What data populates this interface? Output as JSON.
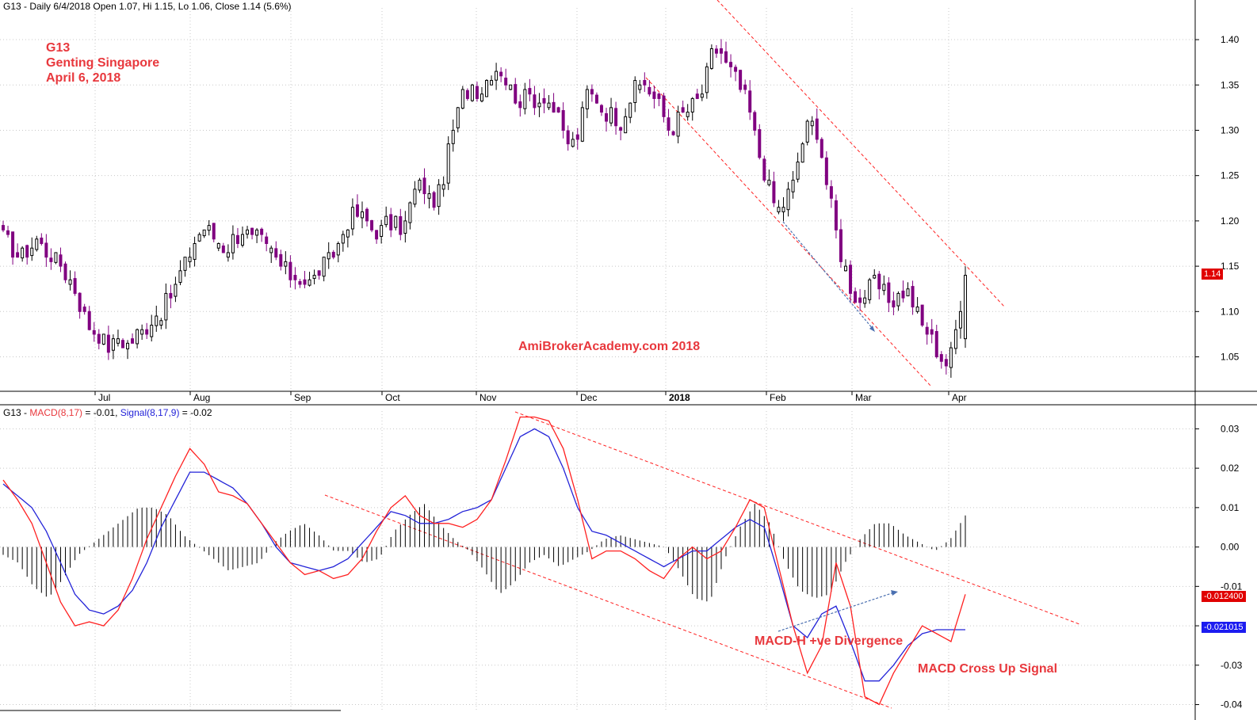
{
  "header": {
    "price_prefix": "G13 - Daily 6/4/2018 Open 1.07, Hi 1.15, Lo 1.06, Close 1.14 (5.6%)",
    "macd_prefix": "G13 - ",
    "macd_label": "MACD(8,17)",
    "macd_value": " = -0.01, ",
    "signal_label": "Signal(8,17,9)",
    "signal_value": " = -0.02"
  },
  "annotations": {
    "ticker": "G13",
    "company": "Genting Singapore",
    "date": "April 6, 2018",
    "watermark": "AmiBrokerAcademy.com  2018",
    "divergence": "MACD-H +ve Divergence",
    "cross_up": "MACD Cross Up Signal"
  },
  "last_values": {
    "price": "1.14",
    "macd": "-0.012400",
    "signal": "-0.021015"
  },
  "colors": {
    "bull_candle": "#ffffff",
    "bear_candle": "#800080",
    "macd_line": "#ff2020",
    "signal_line": "#2323d8",
    "histogram": "#000000",
    "annotation": "#e8383d",
    "channel": "#ff2020"
  },
  "chart_data": [
    {
      "type": "candlestick",
      "title": "G13 - Daily 6/4/2018 Open 1.07, Hi 1.15, Lo 1.06, Close 1.14 (5.6%)",
      "x_tick_labels": [
        "Jul",
        "Aug",
        "Sep",
        "Oct",
        "Nov",
        "Dec",
        "2018",
        "Feb",
        "Mar",
        "Apr"
      ],
      "y_tick_labels": [
        "1.05",
        "1.10",
        "1.15",
        "1.20",
        "1.25",
        "1.30",
        "1.35",
        "1.40"
      ],
      "ylim": [
        1.012,
        1.435
      ],
      "grid": true,
      "legend": "none",
      "anchor_closes": [
        1.18,
        1.17,
        1.16,
        1.17,
        1.18,
        1.17,
        1.16,
        1.15,
        1.14,
        1.12,
        1.09,
        1.08,
        1.07,
        1.06,
        1.07,
        1.06,
        1.07,
        1.08,
        1.09,
        1.1,
        1.11,
        1.13,
        1.15,
        1.17,
        1.19,
        1.19,
        1.18,
        1.17,
        1.18,
        1.19,
        1.18,
        1.18,
        1.17,
        1.16,
        1.15,
        1.14,
        1.14,
        1.13,
        1.14,
        1.15,
        1.16,
        1.18,
        1.2,
        1.21,
        1.2,
        1.19,
        1.19,
        1.2,
        1.19,
        1.2,
        1.23,
        1.24,
        1.22,
        1.23,
        1.27,
        1.31,
        1.34,
        1.35,
        1.34,
        1.36,
        1.37,
        1.36,
        1.34,
        1.33,
        1.34,
        1.33,
        1.34,
        1.32,
        1.3,
        1.28,
        1.3,
        1.34,
        1.34,
        1.32,
        1.32,
        1.31,
        1.33,
        1.35,
        1.35,
        1.34,
        1.32,
        1.3,
        1.31,
        1.32,
        1.33,
        1.34,
        1.38,
        1.39,
        1.37,
        1.36,
        1.34,
        1.31,
        1.27,
        1.24,
        1.21,
        1.22,
        1.24,
        1.28,
        1.31,
        1.3,
        1.25,
        1.2,
        1.16,
        1.13,
        1.11,
        1.12,
        1.13,
        1.12,
        1.11,
        1.12,
        1.12,
        1.1,
        1.08,
        1.07,
        1.05,
        1.04,
        1.09,
        1.14
      ]
    },
    {
      "type": "line",
      "title": "G13 - MACD(8,17) = -0.01, Signal(8,17,9) = -0.02",
      "y_tick_labels": [
        "-0.04",
        "-0.03",
        "-0.02",
        "-0.01",
        "0.00",
        "0.01",
        "0.02",
        "0.03"
      ],
      "ylim": [
        -0.0415,
        0.0345
      ],
      "grid": true,
      "series": [
        {
          "name": "MACD(8,17)",
          "values": [
            0.017,
            0.012,
            0.006,
            -0.004,
            -0.014,
            -0.02,
            -0.019,
            -0.02,
            -0.016,
            -0.008,
            0.002,
            0.01,
            0.018,
            0.025,
            0.021,
            0.014,
            0.013,
            0.011,
            0.006,
            0.001,
            -0.004,
            -0.007,
            -0.006,
            -0.008,
            -0.007,
            -0.003,
            0.004,
            0.01,
            0.013,
            0.008,
            0.006,
            0.006,
            0.005,
            0.007,
            0.012,
            0.022,
            0.033,
            0.033,
            0.032,
            0.025,
            0.012,
            -0.003,
            -0.001,
            -0.001,
            -0.003,
            -0.006,
            -0.008,
            -0.003,
            0.0,
            -0.003,
            -0.001,
            0.005,
            0.012,
            0.01,
            -0.005,
            -0.02,
            -0.032,
            -0.025,
            -0.004,
            -0.015,
            -0.038,
            -0.04,
            -0.032,
            -0.026,
            -0.02,
            -0.022,
            -0.024,
            -0.012
          ]
        },
        {
          "name": "Signal(8,17,9)",
          "values": [
            0.016,
            0.013,
            0.01,
            0.004,
            -0.004,
            -0.012,
            -0.016,
            -0.017,
            -0.015,
            -0.011,
            -0.004,
            0.005,
            0.012,
            0.019,
            0.019,
            0.017,
            0.015,
            0.011,
            0.006,
            0.0,
            -0.004,
            -0.005,
            -0.006,
            -0.005,
            -0.003,
            0.001,
            0.005,
            0.009,
            0.008,
            0.006,
            0.006,
            0.007,
            0.009,
            0.01,
            0.012,
            0.02,
            0.028,
            0.03,
            0.028,
            0.02,
            0.01,
            0.004,
            0.003,
            0.001,
            -0.001,
            -0.003,
            -0.005,
            -0.003,
            -0.001,
            -0.001,
            0.002,
            0.005,
            0.007,
            0.005,
            -0.007,
            -0.02,
            -0.023,
            -0.017,
            -0.015,
            -0.024,
            -0.034,
            -0.034,
            -0.03,
            -0.025,
            -0.022,
            -0.021,
            -0.021,
            -0.021
          ]
        },
        {
          "name": "MACD-H",
          "values": [
            -0.002,
            -0.004,
            -0.01,
            -0.013,
            -0.008,
            -0.002,
            0.001,
            0.004,
            0.007,
            0.01,
            0.01,
            0.008,
            0.003,
            0.0,
            -0.003,
            -0.006,
            -0.005,
            -0.004,
            0.001,
            0.004,
            0.006,
            0.003,
            -0.001,
            -0.001,
            -0.004,
            -0.003,
            0.004,
            0.008,
            0.011,
            0.006,
            0.002,
            -0.001,
            -0.006,
            -0.012,
            -0.009,
            -0.004,
            -0.002,
            -0.005,
            -0.003,
            -0.001,
            0.002,
            0.003,
            0.002,
            0.001,
            0.0,
            -0.006,
            -0.013,
            -0.014,
            -0.003,
            0.005,
            0.011,
            0.006,
            -0.004,
            -0.011,
            -0.013,
            -0.012,
            -0.004,
            0.002,
            0.006,
            0.006,
            0.003,
            0.001,
            -0.001,
            0.002,
            0.008
          ]
        }
      ]
    }
  ]
}
